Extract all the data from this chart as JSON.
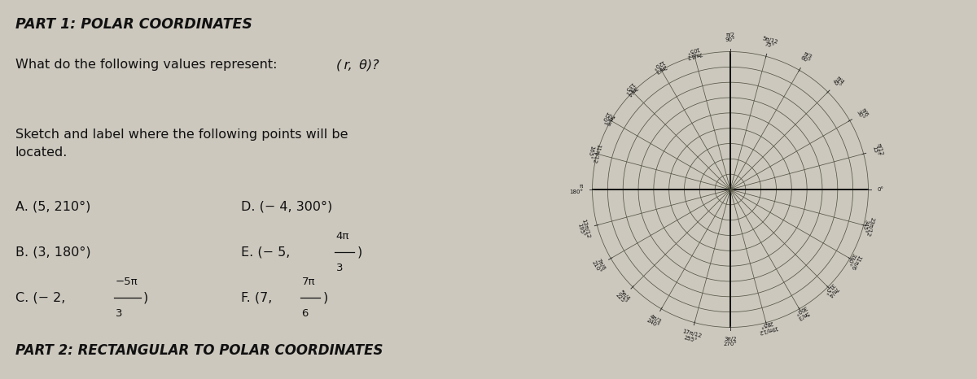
{
  "bg_color": "#ccc8be",
  "left_bg": "#dedad2",
  "right_bg": "#ccc8be",
  "title": "PART 1: POLAR COORDINATES",
  "footer": "PART 2: RECTANGULAR TO POLAR COORDINATES",
  "num_circles": 9,
  "angle_lines_deg": [
    0,
    15,
    30,
    45,
    60,
    75,
    90,
    105,
    120,
    135,
    150,
    165,
    180,
    195,
    210,
    225,
    240,
    255,
    270,
    285,
    300,
    315,
    330,
    345
  ],
  "main_axes_deg": [
    0,
    90,
    180,
    270
  ],
  "labels": {
    "0": [
      "0°",
      ""
    ],
    "15": [
      "π/12",
      "15°"
    ],
    "30": [
      "π/6",
      "30°"
    ],
    "45": [
      "π/4",
      "45°"
    ],
    "60": [
      "π/3",
      "60°"
    ],
    "75": [
      "5π/12",
      "75°"
    ],
    "90": [
      "π/2",
      "90°"
    ],
    "105": [
      "7π/12",
      "105°"
    ],
    "120": [
      "2π/3",
      "120°"
    ],
    "135": [
      "3π/4",
      "135°"
    ],
    "150": [
      "5π/6",
      "150°"
    ],
    "165": [
      "11π/12",
      "165°"
    ],
    "180": [
      "π",
      "180°"
    ],
    "195": [
      "13π/12",
      "195°"
    ],
    "210": [
      "7π/6",
      "210°"
    ],
    "225": [
      "5π/4",
      "225°"
    ],
    "240": [
      "4π/3",
      "240°"
    ],
    "255": [
      "17π/12",
      "255°"
    ],
    "270": [
      "3π/2",
      "270°"
    ],
    "285": [
      "19π/12",
      "285°"
    ],
    "300": [
      "5π/3",
      "300°"
    ],
    "315": [
      "7π/4",
      "315°"
    ],
    "330": [
      "11π/6",
      "330°"
    ],
    "345": [
      "23π/12",
      "345°"
    ]
  },
  "text_color": "#111111",
  "grid_color": "#555544",
  "axis_color": "#111111",
  "tick_color": "#333333"
}
